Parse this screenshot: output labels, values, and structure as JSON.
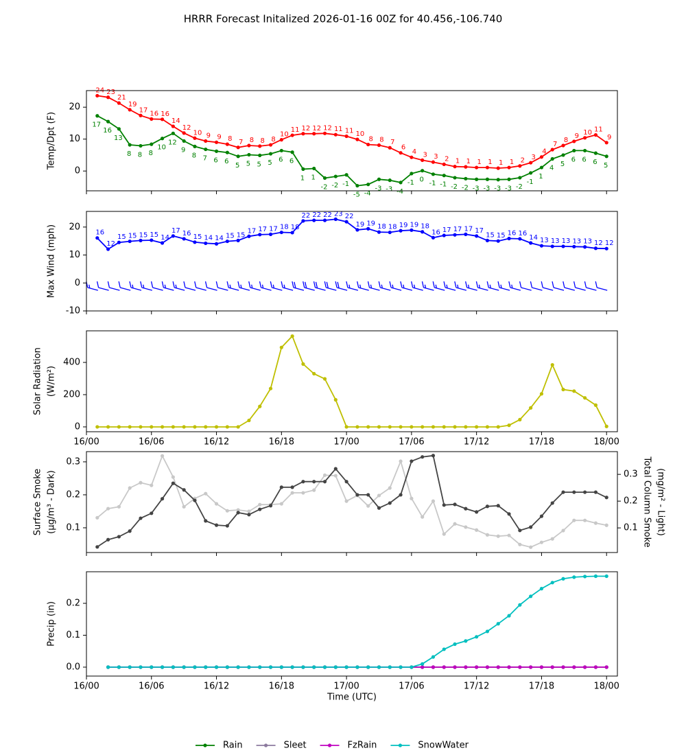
{
  "title": "HRRR Forecast Initalized 2026-01-16 00Z for 40.456,-106.740",
  "chart_data": [
    {
      "type": "line",
      "ylabel": "Temp/Dpt (F)",
      "x": [
        1,
        2,
        3,
        4,
        5,
        6,
        7,
        8,
        9,
        10,
        11,
        12,
        13,
        14,
        15,
        16,
        17,
        18,
        19,
        20,
        21,
        22,
        23,
        24,
        25,
        26,
        27,
        28,
        29,
        30,
        31,
        32,
        33,
        34,
        35,
        36,
        37,
        38,
        39,
        40,
        41,
        42,
        43,
        44,
        45,
        46,
        47,
        48
      ],
      "xlim": [
        0,
        49
      ],
      "xticks": [
        0,
        6,
        12,
        18,
        24,
        30,
        36,
        42,
        48
      ],
      "ylim": [
        -6.2,
        25.2
      ],
      "yticks": [
        0,
        10,
        20
      ],
      "series": [
        {
          "color": "#ff0000",
          "values": [
            23.6,
            23.1,
            21.3,
            19.2,
            17.4,
            16.3,
            16.2,
            14.0,
            11.9,
            10.3,
            9.4,
            9.0,
            8.4,
            7.4,
            8.0,
            7.8,
            8.2,
            9.8,
            11.2,
            11.7,
            11.7,
            11.8,
            11.4,
            10.9,
            9.9,
            8.3,
            8.1,
            7.3,
            5.7,
            4.3,
            3.4,
            2.8,
            2.1,
            1.4,
            1.3,
            1.1,
            1.1,
            0.9,
            1.1,
            1.6,
            2.6,
            4.4,
            6.7,
            8.0,
            9.3,
            10.4,
            11.3,
            8.9
          ],
          "value_labels": [
            "24",
            "23",
            "21",
            "19",
            "17",
            "16",
            "16",
            "14",
            "12",
            "10",
            "9",
            "9",
            "8",
            "7",
            "8",
            "8",
            "8",
            "10",
            "11",
            "12",
            "12",
            "12",
            "11",
            "11",
            "10",
            "8",
            "8",
            "7",
            "6",
            "4",
            "3",
            "3",
            "2",
            "1",
            "1",
            "1",
            "1",
            "1",
            "1",
            "2",
            "3",
            "4",
            "7",
            "8",
            "9",
            "10",
            "11",
            "9"
          ]
        },
        {
          "color": "#008000",
          "values": [
            17.3,
            15.5,
            13.2,
            8.2,
            7.9,
            8.4,
            10.2,
            11.8,
            9.4,
            7.7,
            6.8,
            6.2,
            5.8,
            4.6,
            5.1,
            4.9,
            5.4,
            6.4,
            5.9,
            0.6,
            0.8,
            -2.2,
            -1.7,
            -1.2,
            -4.6,
            -4.2,
            -2.6,
            -2.9,
            -3.6,
            -0.8,
            0.1,
            -1.0,
            -1.4,
            -2.1,
            -2.4,
            -2.6,
            -2.6,
            -2.7,
            -2.6,
            -2.1,
            -0.6,
            1.1,
            3.8,
            5.0,
            6.4,
            6.4,
            5.6,
            4.6
          ],
          "value_labels": [
            "17",
            "16",
            "13",
            "8",
            "8",
            "8",
            "10",
            "12",
            "9",
            "8",
            "7",
            "6",
            "6",
            "5",
            "5",
            "5",
            "5",
            "6",
            "6",
            "1",
            "1",
            "-2",
            "-2",
            "-1",
            "-5",
            "-4",
            "-3",
            "-3",
            "-4",
            "-1",
            "0",
            "-1",
            "-1",
            "-2",
            "-2",
            "-3",
            "-3",
            "-3",
            "-3",
            "-2",
            "-1",
            "1",
            "4",
            "5",
            "6",
            "6",
            "6",
            "5"
          ]
        }
      ]
    },
    {
      "type": "line",
      "ylabel": "Max Wind (mph)",
      "barbs": true,
      "x": [
        1,
        2,
        3,
        4,
        5,
        6,
        7,
        8,
        9,
        10,
        11,
        12,
        13,
        14,
        15,
        16,
        17,
        18,
        19,
        20,
        21,
        22,
        23,
        24,
        25,
        26,
        27,
        28,
        29,
        30,
        31,
        32,
        33,
        34,
        35,
        36,
        37,
        38,
        39,
        40,
        41,
        42,
        43,
        44,
        45,
        46,
        47,
        48
      ],
      "xlim": [
        0,
        49
      ],
      "xticks": [
        0,
        6,
        12,
        18,
        24,
        30,
        36,
        42,
        48
      ],
      "ylim": [
        -10,
        25.6
      ],
      "yticks": [
        -10,
        0,
        10,
        20
      ],
      "series": [
        {
          "color": "#0000ff",
          "values": [
            16.1,
            12.1,
            14.5,
            14.9,
            15.2,
            15.3,
            14.3,
            16.8,
            15.8,
            14.6,
            14.2,
            14.0,
            14.9,
            15.2,
            16.7,
            17.3,
            17.4,
            18.1,
            18.0,
            22.2,
            22.4,
            22.4,
            22.8,
            21.9,
            19.0,
            19.4,
            18.2,
            18.1,
            18.7,
            18.9,
            18.3,
            16.2,
            17.0,
            17.2,
            17.4,
            16.8,
            15.2,
            15.0,
            15.9,
            15.8,
            14.3,
            13.3,
            13.1,
            13.1,
            13.0,
            12.9,
            12.4,
            12.3
          ],
          "value_labels": [
            "16",
            "12",
            "15",
            "15",
            "15",
            "15",
            "14",
            "17",
            "16",
            "15",
            "14",
            "14",
            "15",
            "15",
            "17",
            "17",
            "17",
            "18",
            "18",
            "22",
            "22",
            "22",
            "23",
            "22",
            "19",
            "19",
            "18",
            "18",
            "19",
            "19",
            "18",
            "16",
            "17",
            "17",
            "17",
            "17",
            "15",
            "15",
            "16",
            "16",
            "14",
            "13",
            "13",
            "13",
            "13",
            "13",
            "12",
            "12"
          ]
        }
      ]
    },
    {
      "type": "line",
      "ylabel": [
        "Solar Radiation",
        "(W/m²)"
      ],
      "x": [
        1,
        2,
        3,
        4,
        5,
        6,
        7,
        8,
        9,
        10,
        11,
        12,
        13,
        14,
        15,
        16,
        17,
        18,
        19,
        20,
        21,
        22,
        23,
        24,
        25,
        26,
        27,
        28,
        29,
        30,
        31,
        32,
        33,
        34,
        35,
        36,
        37,
        38,
        39,
        40,
        41,
        42,
        43,
        44,
        45,
        46,
        47,
        48
      ],
      "xlim": [
        0,
        49
      ],
      "xticks": [
        {
          "value": 0,
          "label": "16/00"
        },
        {
          "value": 6,
          "label": "16/06"
        },
        {
          "value": 12,
          "label": "16/12"
        },
        {
          "value": 18,
          "label": "16/18"
        },
        {
          "value": 24,
          "label": "17/00"
        },
        {
          "value": 30,
          "label": "17/06"
        },
        {
          "value": 36,
          "label": "17/12"
        },
        {
          "value": 42,
          "label": "17/18"
        },
        {
          "value": 48,
          "label": "18/00"
        }
      ],
      "ylim": [
        -30,
        596
      ],
      "yticks": [
        0,
        200,
        400
      ],
      "series": [
        {
          "color": "#bfbf00",
          "values": [
            0,
            0,
            0,
            0,
            0,
            0,
            0,
            0,
            0,
            0,
            0,
            0,
            0,
            0,
            40,
            127,
            238,
            493,
            563,
            390,
            330,
            298,
            168,
            0,
            0,
            0,
            0,
            0,
            0,
            0,
            0,
            0,
            0,
            0,
            0,
            0,
            0,
            0,
            10,
            45,
            118,
            205,
            385,
            232,
            222,
            180,
            135,
            3
          ]
        }
      ]
    },
    {
      "type": "line",
      "ylabel": [
        "Surface Smoke",
        "(µg/m³ - Dark)"
      ],
      "y2label": [
        "Total Column Smoke",
        "(mg/m² - Light)"
      ],
      "x": [
        1,
        2,
        3,
        4,
        5,
        6,
        7,
        8,
        9,
        10,
        11,
        12,
        13,
        14,
        15,
        16,
        17,
        18,
        19,
        20,
        21,
        22,
        23,
        24,
        25,
        26,
        27,
        28,
        29,
        30,
        31,
        32,
        33,
        34,
        35,
        36,
        37,
        38,
        39,
        40,
        41,
        42,
        43,
        44,
        45,
        46,
        47,
        48
      ],
      "xlim": [
        0,
        49
      ],
      "xticks": [
        0,
        6,
        12,
        18,
        24,
        30,
        36,
        42,
        48
      ],
      "ylim": [
        0.025,
        0.331
      ],
      "yticks": [
        0.1,
        0.2,
        0.3
      ],
      "y2lim": [
        0.008,
        0.385
      ],
      "y2ticks": [
        0.1,
        0.2,
        0.3
      ],
      "series": [
        {
          "color": "#c8c8c8",
          "axis": "y2",
          "values": [
            0.138,
            0.172,
            0.179,
            0.249,
            0.269,
            0.259,
            0.369,
            0.29,
            0.179,
            0.21,
            0.228,
            0.19,
            0.164,
            0.167,
            0.162,
            0.187,
            0.187,
            0.19,
            0.231,
            0.231,
            0.241,
            0.297,
            0.295,
            0.2,
            0.221,
            0.182,
            0.221,
            0.249,
            0.349,
            0.21,
            0.141,
            0.2,
            0.077,
            0.115,
            0.103,
            0.092,
            0.074,
            0.069,
            0.072,
            0.038,
            0.028,
            0.046,
            0.059,
            0.09,
            0.128,
            0.128,
            0.118,
            0.11
          ]
        },
        {
          "color": "#444444",
          "values": [
            0.042,
            0.064,
            0.073,
            0.09,
            0.129,
            0.144,
            0.188,
            0.235,
            0.215,
            0.183,
            0.121,
            0.108,
            0.106,
            0.146,
            0.14,
            0.156,
            0.167,
            0.223,
            0.223,
            0.24,
            0.24,
            0.24,
            0.279,
            0.24,
            0.2,
            0.2,
            0.16,
            0.175,
            0.2,
            0.302,
            0.315,
            0.319,
            0.169,
            0.171,
            0.158,
            0.148,
            0.165,
            0.167,
            0.142,
            0.092,
            0.102,
            0.135,
            0.175,
            0.208,
            0.208,
            0.208,
            0.208,
            0.192
          ]
        }
      ]
    },
    {
      "type": "line",
      "ylabel": "Precip (in)",
      "xlabel": "Time (UTC)",
      "legend": "below",
      "x": [
        1,
        2,
        3,
        4,
        5,
        6,
        7,
        8,
        9,
        10,
        11,
        12,
        13,
        14,
        15,
        16,
        17,
        18,
        19,
        20,
        21,
        22,
        23,
        24,
        25,
        26,
        27,
        28,
        29,
        30,
        31,
        32,
        33,
        34,
        35,
        36,
        37,
        38,
        39,
        40,
        41,
        42,
        43,
        44,
        45,
        46,
        47,
        48
      ],
      "xlim": [
        0,
        49
      ],
      "xticks": [
        {
          "value": 0,
          "label": "16/00"
        },
        {
          "value": 6,
          "label": "16/06"
        },
        {
          "value": 12,
          "label": "16/12"
        },
        {
          "value": 18,
          "label": "16/18"
        },
        {
          "value": 24,
          "label": "17/00"
        },
        {
          "value": 30,
          "label": "17/06"
        },
        {
          "value": 36,
          "label": "17/12"
        },
        {
          "value": 42,
          "label": "17/18"
        },
        {
          "value": 48,
          "label": "18/00"
        }
      ],
      "ylim": [
        -0.028,
        0.299
      ],
      "yticks": [
        {
          "value": 0,
          "label": "0.0"
        },
        0.1,
        0.2
      ],
      "series": [
        {
          "name": "Rain",
          "color": "#008000",
          "values": [
            null,
            0,
            0,
            0,
            0,
            0,
            0,
            0,
            0,
            0,
            0,
            0,
            0,
            0,
            0,
            0,
            0,
            0,
            0,
            0,
            0,
            0,
            0,
            0,
            0,
            0,
            0,
            0,
            0,
            0,
            0,
            0,
            0,
            0,
            0,
            0,
            0,
            0,
            0,
            0,
            0,
            0,
            0,
            0,
            0,
            0,
            0,
            0
          ]
        },
        {
          "name": "Sleet",
          "color": "#8c7a9e",
          "values": [
            null,
            0,
            0,
            0,
            0,
            0,
            0,
            0,
            0,
            0,
            0,
            0,
            0,
            0,
            0,
            0,
            0,
            0,
            0,
            0,
            0,
            0,
            0,
            0,
            0,
            0,
            0,
            0,
            0,
            0,
            0,
            0,
            0,
            0,
            0,
            0,
            0,
            0,
            0,
            0,
            0,
            0,
            0,
            0,
            0,
            0,
            0,
            0
          ]
        },
        {
          "name": "FzRain",
          "color": "#bf00bf",
          "values": [
            null,
            0,
            0,
            0,
            0,
            0,
            0,
            0,
            0,
            0,
            0,
            0,
            0,
            0,
            0,
            0,
            0,
            0,
            0,
            0,
            0,
            0,
            0,
            0,
            0,
            0,
            0,
            0,
            0,
            0,
            0,
            0,
            0,
            0,
            0,
            0,
            0,
            0,
            0,
            0,
            0,
            0,
            0,
            0,
            0,
            0,
            0,
            0
          ]
        },
        {
          "name": "SnowWater",
          "color": "#00bfbf",
          "values": [
            null,
            0,
            0,
            0,
            0,
            0,
            0,
            0,
            0,
            0,
            0,
            0,
            0,
            0,
            0,
            0,
            0,
            0,
            0,
            0,
            0,
            0,
            0,
            0,
            0,
            0,
            0,
            0,
            0,
            0,
            0.01,
            0.032,
            0.056,
            0.072,
            0.082,
            0.095,
            0.112,
            0.136,
            0.161,
            0.195,
            0.222,
            0.246,
            0.265,
            0.277,
            0.282,
            0.284,
            0.285,
            0.285
          ]
        }
      ]
    }
  ]
}
